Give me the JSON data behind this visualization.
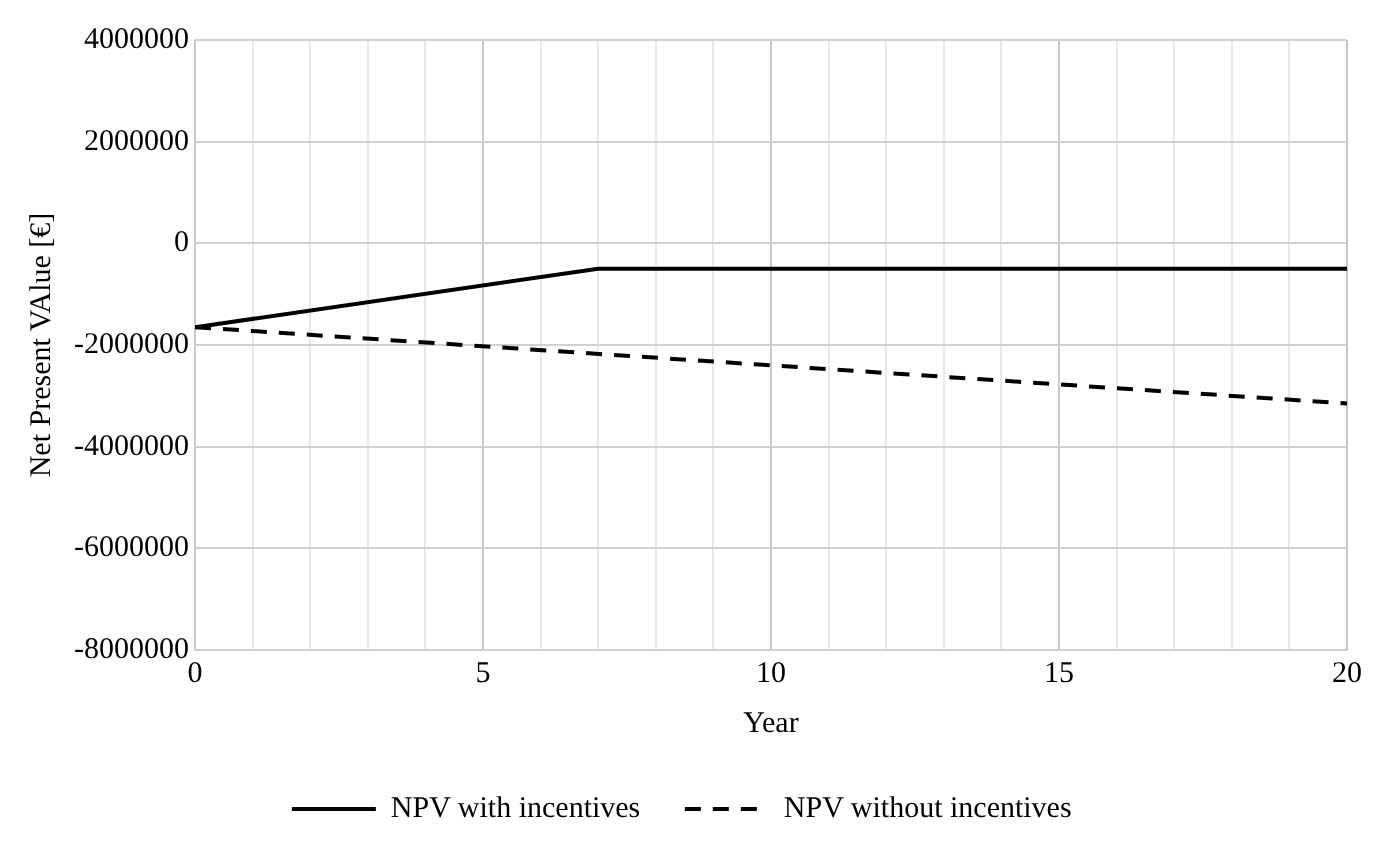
{
  "chart_data": {
    "type": "line",
    "xlabel": "Year",
    "ylabel": "Net Present VAlue [€]",
    "xlim": [
      0,
      20
    ],
    "xticks": [
      0,
      {
        "value": 1,
        "label": null
      },
      {
        "value": 2,
        "label": null
      },
      {
        "value": 3,
        "label": null
      },
      {
        "value": 4,
        "label": null
      },
      5,
      {
        "value": 6,
        "label": null
      },
      {
        "value": 7,
        "label": null
      },
      {
        "value": 8,
        "label": null
      },
      {
        "value": 9,
        "label": null
      },
      10,
      {
        "value": 11,
        "label": null
      },
      {
        "value": 12,
        "label": null
      },
      {
        "value": 13,
        "label": null
      },
      {
        "value": 14,
        "label": null
      },
      15,
      {
        "value": 16,
        "label": null
      },
      {
        "value": 17,
        "label": null
      },
      {
        "value": 18,
        "label": null
      },
      {
        "value": 19,
        "label": null
      },
      20
    ],
    "ylim": [
      -8000000,
      4000000
    ],
    "yticks": [
      -8000000,
      -6000000,
      -4000000,
      -2000000,
      0,
      2000000,
      4000000
    ],
    "grid": true,
    "legend": "bottom",
    "marker": "none",
    "series": [
      {
        "name": "NPV with incentives",
        "color": "#000000",
        "line_style": "solid",
        "x": [
          0,
          7,
          8,
          20
        ],
        "values": [
          -1650000,
          -500000,
          -500000,
          -500000
        ]
      },
      {
        "name": "NPV without incentives",
        "color": "#000000",
        "line_style": "dashed",
        "x": [
          0,
          20
        ],
        "values": [
          -1650000,
          -3150000
        ]
      }
    ]
  }
}
